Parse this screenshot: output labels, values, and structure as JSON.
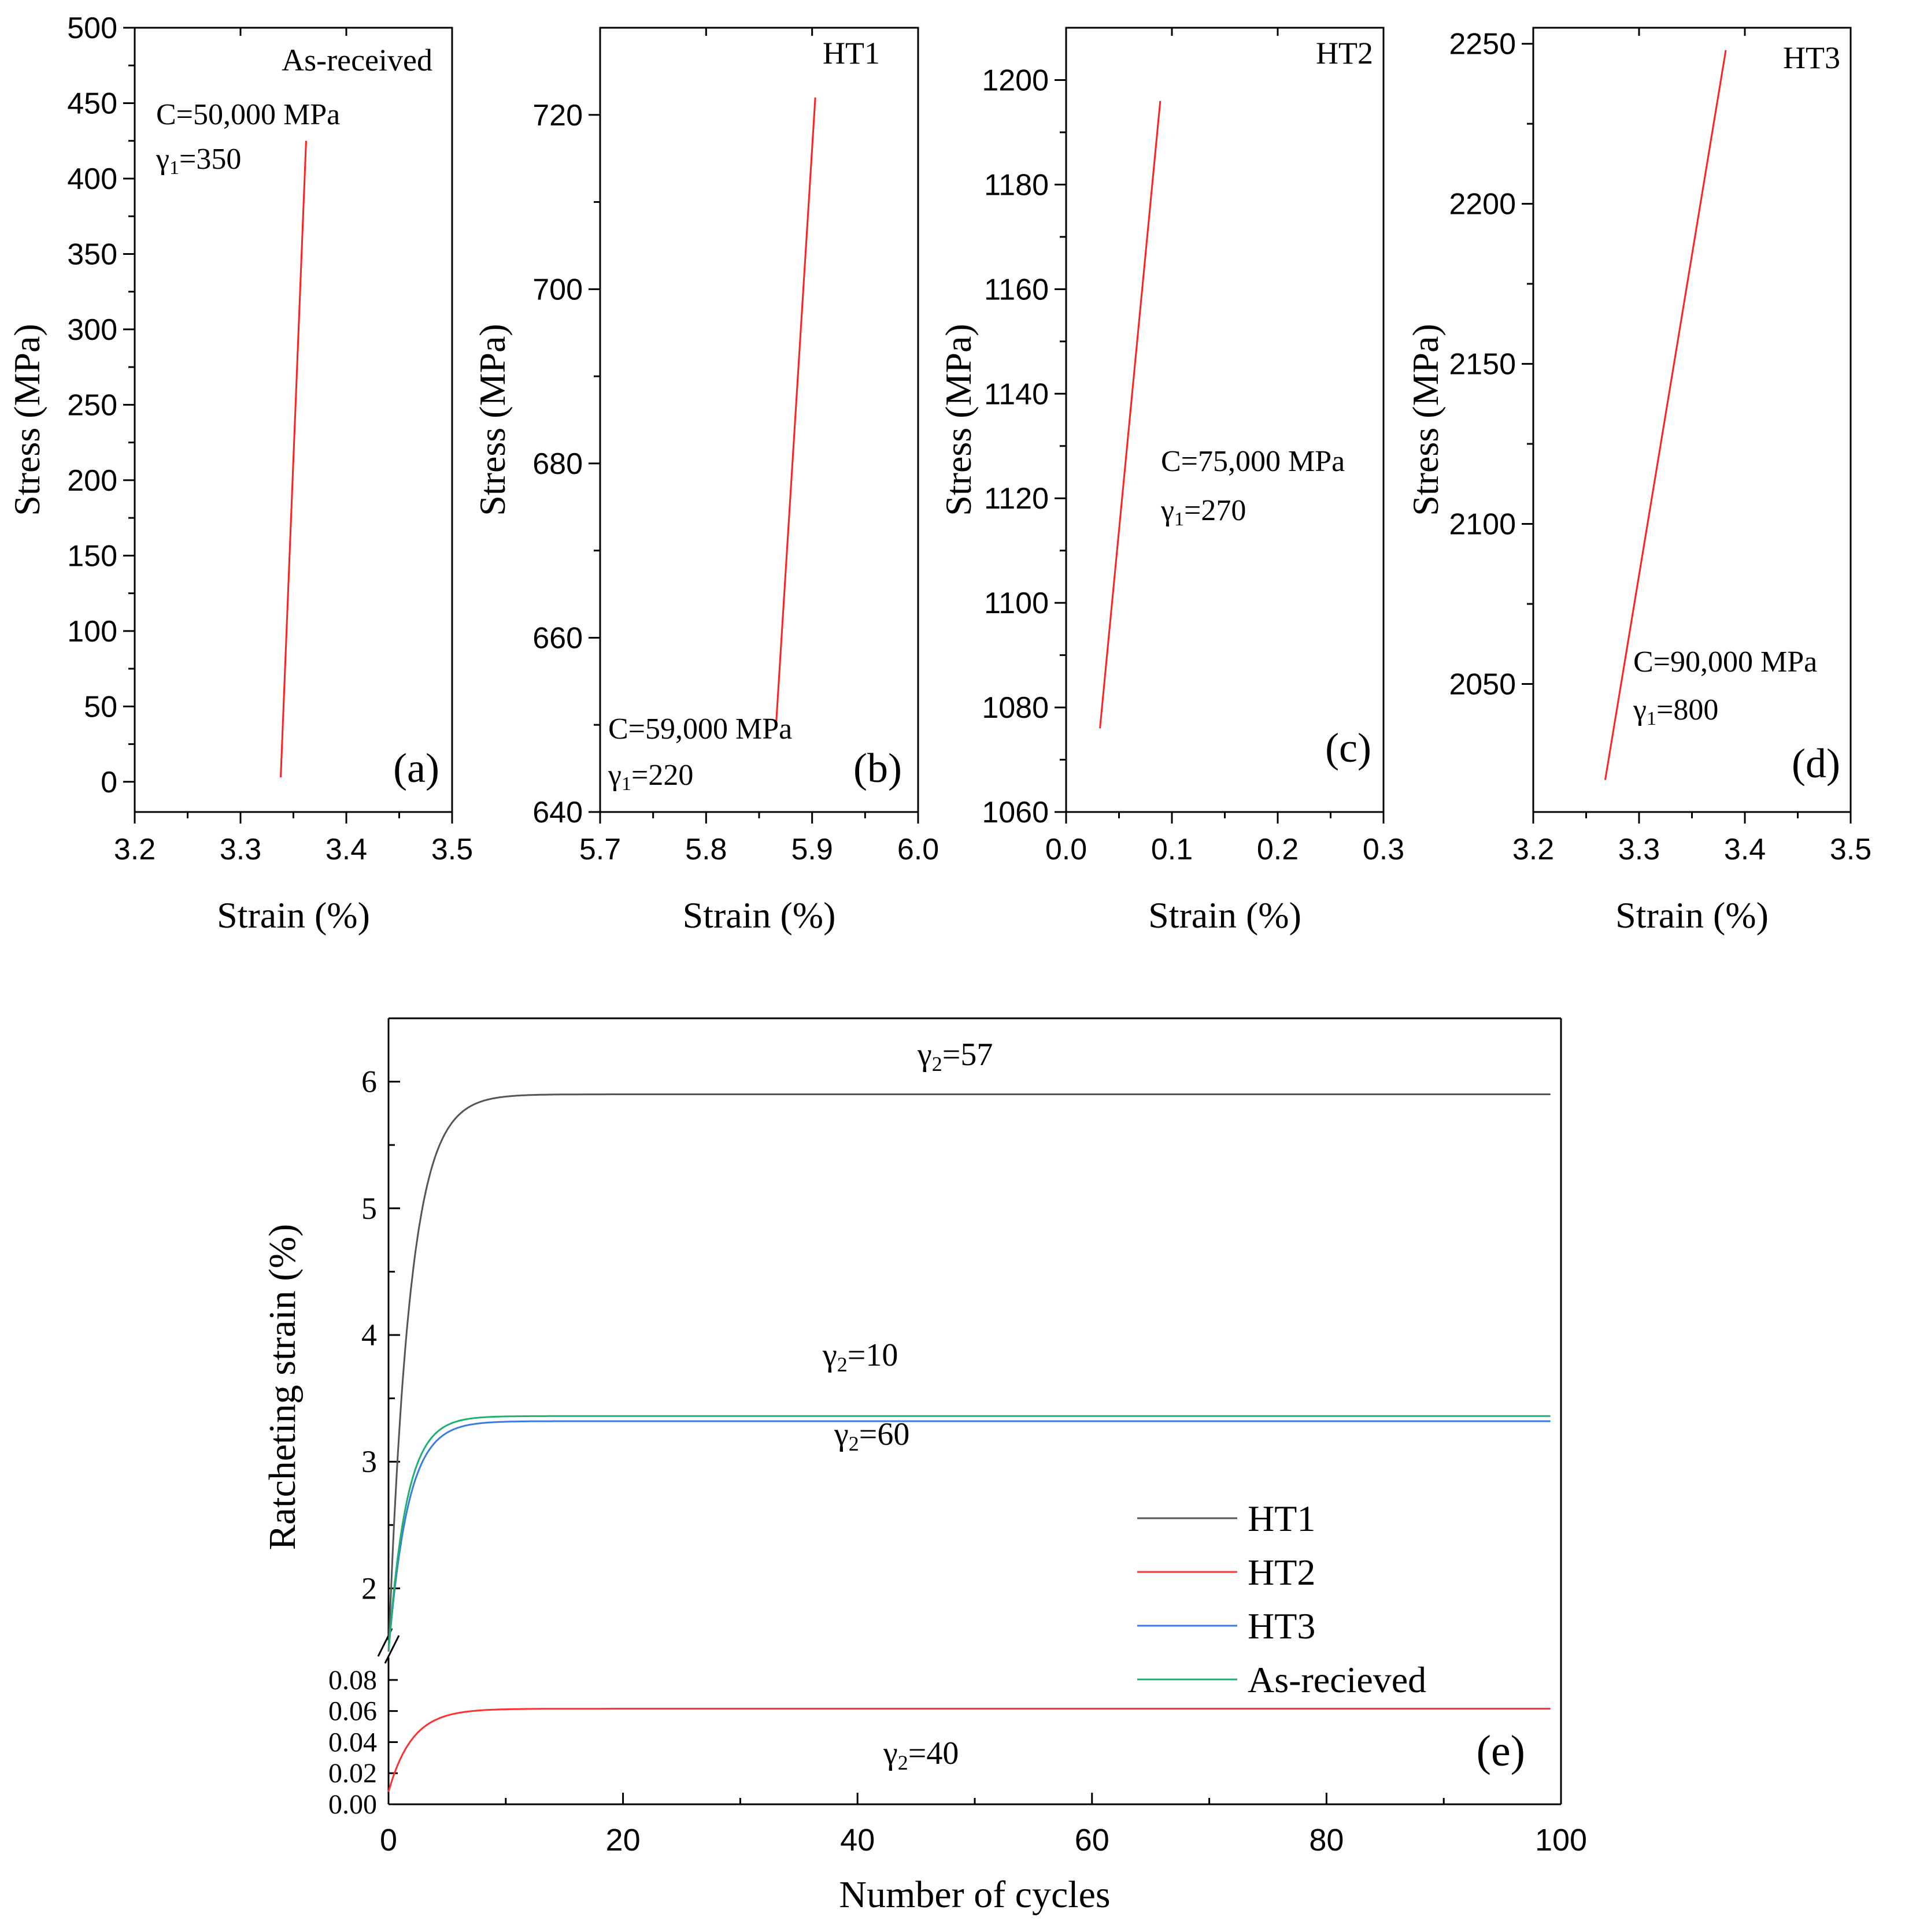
{
  "figure": {
    "colors": {
      "HT1": "#555555",
      "HT2": "#ff3030",
      "HT3": "#3a7de0",
      "As-recieved": "#20b070",
      "fit": "#ff2020"
    }
  },
  "chart_data": [
    {
      "id": "a",
      "type": "line",
      "panel_label": "(a)",
      "title": "As-received",
      "xlabel": "Strain (%)",
      "ylabel": "Stress (MPa)",
      "xlim": [
        3.2,
        3.5
      ],
      "ylim": [
        -20,
        500
      ],
      "xticks": [
        3.2,
        3.3,
        3.4,
        3.5
      ],
      "xtick_labels": [
        "3.2",
        "3.3",
        "3.4",
        "3.5"
      ],
      "yticks": [
        0,
        50,
        100,
        150,
        200,
        250,
        300,
        350,
        400,
        450,
        500
      ],
      "ytick_labels": [
        "0",
        "50",
        "100",
        "150",
        "200",
        "250",
        "300",
        "350",
        "400",
        "450",
        "500"
      ],
      "annotations": [
        {
          "text": "C=50,000 MPa",
          "kind": "C"
        },
        {
          "text": "350",
          "kind": "gamma",
          "symbol": "γ",
          "sub": "1",
          "eq": "="
        }
      ],
      "series": [
        {
          "name": "fit",
          "x": [
            3.338,
            3.362
          ],
          "y": [
            3,
            425
          ]
        }
      ]
    },
    {
      "id": "b",
      "type": "line",
      "panel_label": "(b)",
      "title": "HT1",
      "xlabel": "Strain (%)",
      "ylabel": "Stress (MPa)",
      "xlim": [
        5.7,
        6.0
      ],
      "ylim": [
        640,
        730
      ],
      "xticks": [
        5.7,
        5.8,
        5.9,
        6.0
      ],
      "xtick_labels": [
        "5.7",
        "5.8",
        "5.9",
        "6.0"
      ],
      "yticks": [
        640,
        660,
        680,
        700,
        720
      ],
      "ytick_labels": [
        "640",
        "660",
        "680",
        "700",
        "720"
      ],
      "annotations": [
        {
          "text": "C=59,000 MPa",
          "kind": "C"
        },
        {
          "text": "220",
          "kind": "gamma",
          "symbol": "γ",
          "sub": "1",
          "eq": "="
        }
      ],
      "series": [
        {
          "name": "fit",
          "x": [
            5.866,
            5.903
          ],
          "y": [
            650,
            722
          ]
        }
      ]
    },
    {
      "id": "c",
      "type": "line",
      "panel_label": "(c)",
      "title": "HT2",
      "xlabel": "Strain (%)",
      "ylabel": "Stress (MPa)",
      "xlim": [
        0.0,
        0.3
      ],
      "ylim": [
        1060,
        1210
      ],
      "xticks": [
        0.0,
        0.1,
        0.2,
        0.3
      ],
      "xtick_labels": [
        "0.0",
        "0.1",
        "0.2",
        "0.3"
      ],
      "yticks": [
        1060,
        1080,
        1100,
        1120,
        1140,
        1160,
        1180,
        1200
      ],
      "ytick_labels": [
        "1060",
        "1080",
        "1100",
        "1120",
        "1140",
        "1160",
        "1180",
        "1200"
      ],
      "annotations": [
        {
          "text": "C=75,000 MPa",
          "kind": "C"
        },
        {
          "text": "270",
          "kind": "gamma",
          "symbol": "γ",
          "sub": "1",
          "eq": "="
        }
      ],
      "series": [
        {
          "name": "fit",
          "x": [
            0.032,
            0.089
          ],
          "y": [
            1076,
            1196
          ]
        }
      ]
    },
    {
      "id": "d",
      "type": "line",
      "panel_label": "(d)",
      "title": "HT3",
      "xlabel": "Strain (%)",
      "ylabel": "Stress (MPa)",
      "xlim": [
        3.2,
        3.5
      ],
      "ylim": [
        2010,
        2255
      ],
      "xticks": [
        3.2,
        3.3,
        3.4,
        3.5
      ],
      "xtick_labels": [
        "3.2",
        "3.3",
        "3.4",
        "3.5"
      ],
      "yticks": [
        2050,
        2100,
        2150,
        2200,
        2250
      ],
      "ytick_labels": [
        "2050",
        "2100",
        "2150",
        "2200",
        "2250"
      ],
      "annotations": [
        {
          "text": "C=90,000 MPa",
          "kind": "C"
        },
        {
          "text": "800",
          "kind": "gamma",
          "symbol": "γ",
          "sub": "1",
          "eq": "="
        }
      ],
      "series": [
        {
          "name": "fit",
          "x": [
            3.268,
            3.382
          ],
          "y": [
            2020,
            2248
          ]
        }
      ]
    },
    {
      "id": "e",
      "type": "line",
      "panel_label": "(e)",
      "xlabel": "Number of cycles",
      "ylabel": "Ratcheting strain (%)",
      "xlim": [
        0,
        100
      ],
      "xticks": [
        0,
        20,
        40,
        60,
        80,
        100
      ],
      "xtick_labels": [
        "0",
        "20",
        "40",
        "60",
        "80",
        "100"
      ],
      "broken_y_axis": {
        "lower_range": [
          0,
          0.09
        ],
        "upper_range": [
          1.5,
          6.5
        ],
        "lower_ticks": [
          0.0,
          0.02,
          0.04,
          0.06,
          0.08
        ],
        "lower_tick_labels": [
          "0.00",
          "0.02",
          "0.04",
          "0.06",
          "0.08"
        ],
        "upper_ticks": [
          2,
          3,
          4,
          5,
          6
        ],
        "upper_tick_labels": [
          "2",
          "3",
          "4",
          "5",
          "6"
        ]
      },
      "legend_position": "center-right",
      "annotations": [
        {
          "text": "57",
          "kind": "gamma",
          "symbol": "γ",
          "sub": "2",
          "eq": "=",
          "series": "HT1"
        },
        {
          "text": "10",
          "kind": "gamma",
          "symbol": "γ",
          "sub": "2",
          "eq": "=",
          "series": "As-recieved"
        },
        {
          "text": "60",
          "kind": "gamma",
          "symbol": "γ",
          "sub": "2",
          "eq": "=",
          "series": "HT3"
        },
        {
          "text": "40",
          "kind": "gamma",
          "symbol": "γ",
          "sub": "2",
          "eq": "=",
          "series": "HT2"
        }
      ],
      "series": [
        {
          "name": "HT1",
          "start": 1.5,
          "saturation": 5.9,
          "rate": 0.55,
          "segment": "upper"
        },
        {
          "name": "HT2",
          "start": 0.008,
          "saturation": 0.0615,
          "rate": 0.5,
          "segment": "lower"
        },
        {
          "name": "HT3",
          "start": 1.5,
          "saturation": 3.32,
          "rate": 0.6,
          "segment": "upper"
        },
        {
          "name": "As-recieved",
          "start": 1.5,
          "saturation": 3.36,
          "rate": 0.65,
          "segment": "upper"
        }
      ]
    }
  ]
}
